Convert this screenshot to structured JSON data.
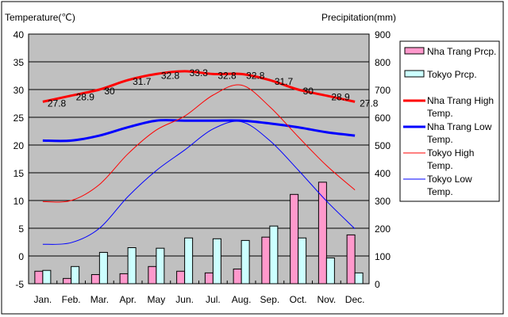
{
  "chart_data": {
    "type": "bar+line",
    "categories": [
      "Jan.",
      "Feb.",
      "Mar.",
      "Apr.",
      "May",
      "Jun.",
      "Jul.",
      "Aug.",
      "Sep.",
      "Oct.",
      "Nov.",
      "Dec."
    ],
    "ylabel_left": "Temperature(℃)",
    "ylabel_right": "Precipitation(mm)",
    "ylim_left": [
      -5,
      40
    ],
    "ylim_right": [
      0,
      900
    ],
    "yticks_left": [
      "40",
      "35",
      "30",
      "25",
      "20",
      "15",
      "10",
      "5",
      "0",
      "-5"
    ],
    "yticks_right": [
      "900",
      "800",
      "700",
      "600",
      "500",
      "400",
      "300",
      "200",
      "100",
      "0"
    ],
    "grid": true,
    "legend_position": "right",
    "bar_series": [
      {
        "name": "Nha Trang Prcp.",
        "color": "#ff99cc",
        "values": [
          45,
          19,
          33,
          36,
          62,
          45,
          39,
          53,
          168,
          322,
          366,
          176
        ]
      },
      {
        "name": "Tokyo Prcp.",
        "color": "#ccffff",
        "values": [
          48,
          62,
          113,
          130,
          128,
          165,
          162,
          156,
          208,
          165,
          93,
          39
        ]
      }
    ],
    "line_series": [
      {
        "name": "Nha Trang High Temp.",
        "color": "#ff0000",
        "width": 3,
        "values": [
          27.8,
          28.9,
          30,
          31.7,
          32.8,
          33.3,
          32.8,
          32.8,
          31.7,
          30,
          28.9,
          27.8
        ],
        "labels": [
          "27.8",
          "28.9",
          "30",
          "31.7",
          "32.8",
          "33.3",
          "32.8",
          "32.8",
          "31.7",
          "30",
          "28.9",
          "27.8"
        ]
      },
      {
        "name": "Nha Trang Low Temp.",
        "color": "#0000ff",
        "width": 3,
        "values": [
          20.8,
          20.8,
          21.7,
          23.2,
          24.4,
          24.4,
          24.4,
          24.4,
          23.9,
          23.2,
          22.3,
          21.7
        ]
      },
      {
        "name": "Tokyo High Temp.",
        "color": "#ff0000",
        "width": 1,
        "values": [
          9.8,
          10,
          12.9,
          18.4,
          22.7,
          25.2,
          29,
          30.8,
          26.9,
          21.5,
          16.3,
          11.9
        ]
      },
      {
        "name": "Tokyo Low Temp.",
        "color": "#0000ff",
        "width": 1,
        "values": [
          2.1,
          2.4,
          5,
          10.7,
          15.4,
          19.1,
          22.9,
          24.2,
          20.8,
          15.5,
          9.9,
          4.9
        ]
      }
    ],
    "legend": [
      "Nha Trang Prcp.",
      "Tokyo Prcp.",
      "Nha Trang High Temp.",
      "Nha Trang Low Temp.",
      "Tokyo High Temp.",
      "Tokyo Low Temp."
    ]
  }
}
